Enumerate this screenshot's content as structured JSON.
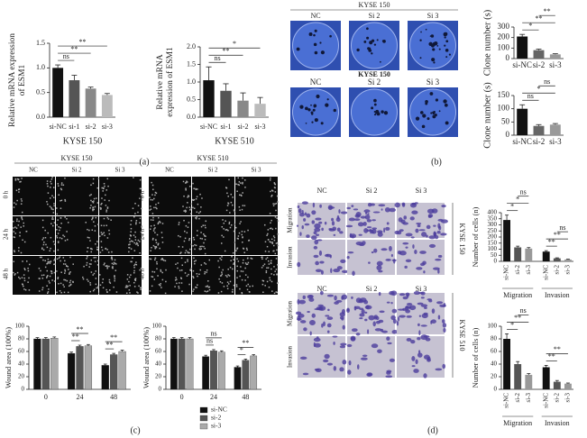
{
  "figure": {
    "panel_labels": [
      "(a)",
      "(b)",
      "(c)",
      "(d)"
    ],
    "b_images": {
      "title": "KYSE 150",
      "columns": [
        "NC",
        "Si 2",
        "Si 3"
      ],
      "title2": "KYSE 150",
      "columns2": [
        "NC",
        "Si 2",
        "Si 3"
      ]
    },
    "c_images": [
      {
        "title": "KYSE 150",
        "columns": [
          "NC",
          "Si 2",
          "Si 3"
        ],
        "rows": [
          "0 h",
          "24 h",
          "48 h"
        ]
      },
      {
        "title": "KYSE 510",
        "columns": [
          "NC",
          "Si 2",
          "Si 3"
        ],
        "rows": [
          "0 h",
          "24 h",
          "48 h"
        ]
      }
    ],
    "d_images": [
      {
        "title": "KYSE 150",
        "columns": [
          "NC",
          "Si 2",
          "Si 3"
        ],
        "rows": [
          "Migration",
          "Invasion"
        ]
      },
      {
        "title": "KYSE 510",
        "columns": [
          "NC",
          "Si 2",
          "Si 3"
        ],
        "rows": [
          "Migration",
          "Invasion"
        ]
      }
    ]
  },
  "chart_data": [
    {
      "type": "bar",
      "ylabel": [
        "Relative mRNA expression",
        "of ESM1"
      ],
      "xlabel": "KYSE 150",
      "categories": [
        "si-NC",
        "si-1",
        "si-2",
        "si-3"
      ],
      "values": [
        1.0,
        0.75,
        0.58,
        0.45
      ],
      "errors": [
        0.06,
        0.1,
        0.03,
        0.03
      ],
      "colors": [
        "#111111",
        "#555555",
        "#888888",
        "#bbbbbb"
      ],
      "ylim": [
        0,
        1.5
      ],
      "yticks": [
        {
          "value": 0,
          "label": "0.0"
        },
        0.5,
        {
          "value": 1,
          "label": "1.0"
        },
        1.5
      ],
      "annotations": [
        {
          "text": "ns",
          "between": [
            "si-NC",
            "si-1"
          ]
        },
        {
          "text": "**",
          "between": [
            "si-NC",
            "si-2"
          ]
        },
        {
          "text": "**",
          "between": [
            "si-NC",
            "si-3"
          ]
        }
      ]
    },
    {
      "type": "bar",
      "ylabel": [
        "Relative mRNA",
        "expression of ESM1"
      ],
      "xlabel": "KYSE 510",
      "categories": [
        "si-NC",
        "si-1",
        "si-2",
        "si-3"
      ],
      "values": [
        1.05,
        0.75,
        0.47,
        0.38
      ],
      "errors": [
        0.38,
        0.2,
        0.22,
        0.18
      ],
      "colors": [
        "#111111",
        "#555555",
        "#888888",
        "#bbbbbb"
      ],
      "ylim": [
        0,
        2
      ],
      "yticks": [
        {
          "value": 0,
          "label": "0.0"
        },
        0.5,
        {
          "value": 1,
          "label": "1.0"
        },
        1.5,
        {
          "value": 2,
          "label": "2.0"
        }
      ],
      "annotations": [
        {
          "text": "ns",
          "between": [
            "si-NC",
            "si-1"
          ]
        },
        {
          "text": "**",
          "between": [
            "si-NC",
            "si-2"
          ]
        },
        {
          "text": "*",
          "between": [
            "si-NC",
            "si-3"
          ]
        }
      ]
    },
    {
      "type": "bar",
      "ylabel": [
        "Clone number (s)"
      ],
      "categories": [
        "si-NC",
        "si-2",
        "si-3"
      ],
      "values": [
        210,
        80,
        40
      ],
      "errors": [
        20,
        10,
        6
      ],
      "colors": [
        "#111111",
        "#666666",
        "#999999"
      ],
      "ylim": [
        0,
        300
      ],
      "yticks": [
        0,
        100,
        200,
        300
      ],
      "annotations": [
        {
          "text": "*",
          "between": [
            "si-NC",
            "si-2"
          ]
        },
        {
          "text": "**",
          "between": [
            "si-NC",
            "si-3"
          ]
        },
        {
          "text": "**",
          "between": [
            "si-2",
            "si-3"
          ]
        }
      ]
    },
    {
      "type": "bar",
      "ylabel": [
        "Clone number (s)"
      ],
      "categories": [
        "si-NC",
        "si-2",
        "si-3"
      ],
      "values": [
        100,
        35,
        40
      ],
      "errors": [
        15,
        5,
        4
      ],
      "colors": [
        "#111111",
        "#666666",
        "#999999"
      ],
      "ylim": [
        0,
        150
      ],
      "yticks": [
        0,
        50,
        100,
        150
      ],
      "annotations": [
        {
          "text": "ns",
          "between": [
            "si-NC",
            "si-2"
          ]
        },
        {
          "text": "*",
          "between": [
            "si-NC",
            "si-3"
          ]
        },
        {
          "text": "ns",
          "between": [
            "si-2",
            "si-3"
          ]
        }
      ]
    },
    {
      "type": "grouped_bar",
      "ylabel": [
        "Wound area (100%)"
      ],
      "categories": [
        "0",
        "24",
        "48"
      ],
      "series": [
        {
          "color": "#111111",
          "values": [
            80,
            57,
            38
          ],
          "errors": [
            2,
            2,
            2
          ]
        },
        {
          "color": "#555555",
          "values": [
            80,
            68,
            55
          ],
          "errors": [
            2,
            2,
            2
          ]
        },
        {
          "color": "#aaaaaa",
          "values": [
            81,
            69,
            60
          ],
          "errors": [
            2,
            2,
            2
          ]
        }
      ],
      "ylim": [
        0,
        100
      ],
      "yticks": [
        0,
        20,
        40,
        60,
        80,
        100
      ],
      "annotations": [
        {
          "text": "**",
          "group": "24",
          "between": [
            0,
            1
          ]
        },
        {
          "text": "**",
          "group": "24",
          "between": [
            0,
            2
          ]
        },
        {
          "text": "**",
          "group": "48",
          "between": [
            0,
            1
          ]
        },
        {
          "text": "**",
          "group": "48",
          "between": [
            0,
            2
          ]
        }
      ]
    },
    {
      "type": "grouped_bar",
      "ylabel": [
        "Wound area (100%)"
      ],
      "categories": [
        "0",
        "24",
        "48"
      ],
      "series": [
        {
          "name": "si-NC",
          "color": "#111111",
          "values": [
            80,
            52,
            35
          ],
          "errors": [
            2,
            2,
            2
          ]
        },
        {
          "name": "si-2",
          "color": "#555555",
          "values": [
            80,
            61,
            46
          ],
          "errors": [
            2,
            2,
            2
          ]
        },
        {
          "name": "si-3",
          "color": "#aaaaaa",
          "values": [
            80,
            59,
            53
          ],
          "errors": [
            2,
            2,
            2
          ]
        }
      ],
      "ylim": [
        0,
        100
      ],
      "yticks": [
        0,
        20,
        40,
        60,
        80,
        100
      ],
      "annotations": [
        {
          "text": "ns",
          "group": "24",
          "between": [
            0,
            1
          ]
        },
        {
          "text": "ns",
          "group": "24",
          "between": [
            0,
            2
          ]
        },
        {
          "text": "*",
          "group": "48",
          "between": [
            0,
            1
          ]
        },
        {
          "text": "**",
          "group": "48",
          "between": [
            0,
            2
          ]
        }
      ]
    },
    {
      "type": "bar",
      "ylabel": [
        "Number of cells (n)"
      ],
      "categories": [
        "si-NC",
        "si-2",
        "si-3",
        "si-NC",
        "si-2",
        "si-3"
      ],
      "groups": [
        "Migration",
        "Invasion"
      ],
      "values": [
        340,
        115,
        105,
        80,
        25,
        15
      ],
      "errors": [
        40,
        10,
        8,
        8,
        4,
        3
      ],
      "colors": [
        "#111111",
        "#555555",
        "#999999",
        "#111111",
        "#555555",
        "#999999"
      ],
      "ylim": [
        0,
        400
      ],
      "yticks": [
        0,
        50,
        100,
        150,
        200,
        250,
        300,
        350,
        400
      ],
      "annotations": [
        {
          "text": "*",
          "group": "Migration",
          "between": [
            "si-NC",
            "si-2"
          ]
        },
        {
          "text": "*",
          "group": "Migration",
          "between": [
            "si-NC",
            "si-3"
          ]
        },
        {
          "text": "ns",
          "group": "Migration",
          "between": [
            "si-2",
            "si-3"
          ]
        },
        {
          "text": "**",
          "group": "Invasion",
          "between": [
            "si-NC",
            "si-2"
          ]
        },
        {
          "text": "**",
          "group": "Invasion",
          "between": [
            "si-NC",
            "si-3"
          ]
        },
        {
          "text": "ns",
          "group": "Invasion",
          "between": [
            "si-2",
            "si-3"
          ]
        }
      ]
    },
    {
      "type": "bar",
      "ylabel": [
        "Number of cells (n)"
      ],
      "categories": [
        "si-NC",
        "si-2",
        "si-3",
        "si-NC",
        "si-2",
        "si-3"
      ],
      "groups": [
        "Migration",
        "Invasion"
      ],
      "values": [
        80,
        40,
        23,
        35,
        12,
        9
      ],
      "errors": [
        8,
        4,
        2,
        3,
        2,
        1
      ],
      "colors": [
        "#111111",
        "#555555",
        "#999999",
        "#111111",
        "#555555",
        "#999999"
      ],
      "ylim": [
        0,
        100
      ],
      "yticks": [
        0,
        20,
        40,
        60,
        80,
        100
      ],
      "annotations": [
        {
          "text": "*",
          "group": "Migration",
          "between": [
            "si-NC",
            "si-2"
          ]
        },
        {
          "text": "**",
          "group": "Migration",
          "between": [
            "si-NC",
            "si-3"
          ]
        },
        {
          "text": "ns",
          "group": "Migration",
          "between": [
            "si-2",
            "si-3"
          ]
        },
        {
          "text": "**",
          "group": "Invasion",
          "between": [
            "si-NC",
            "si-2"
          ]
        },
        {
          "text": "**",
          "group": "Invasion",
          "between": [
            "si-NC",
            "si-3"
          ]
        }
      ]
    }
  ]
}
